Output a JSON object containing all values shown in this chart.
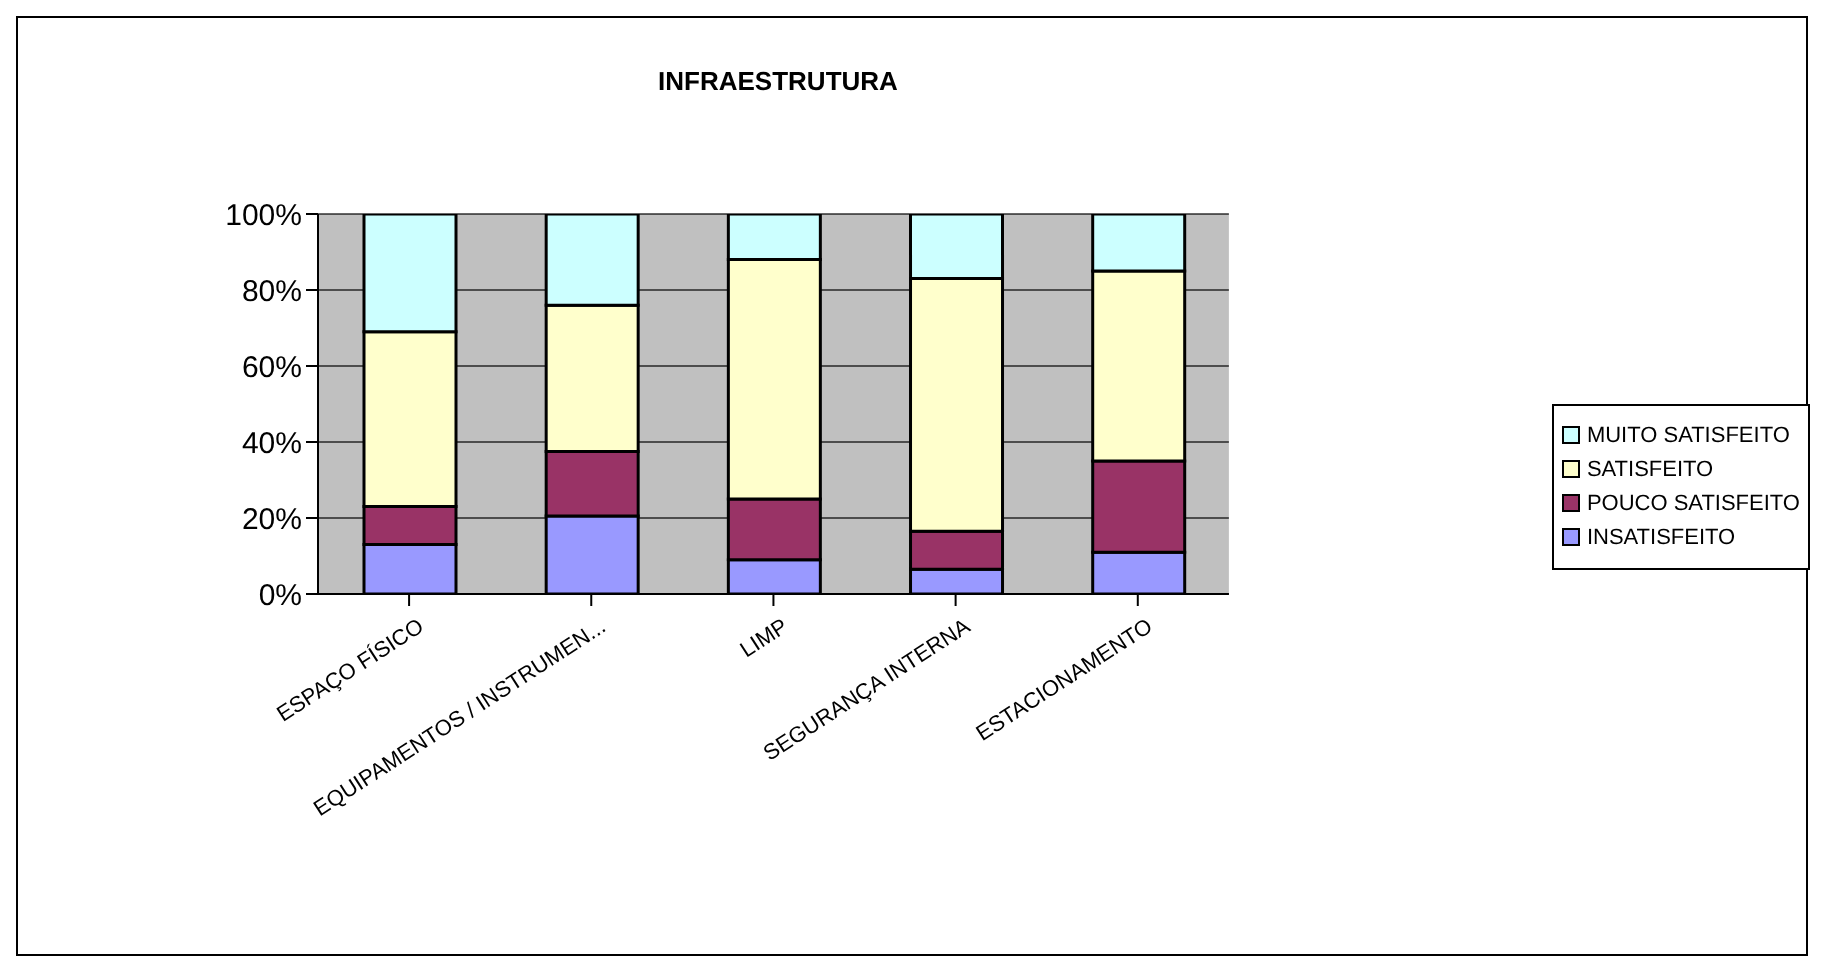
{
  "chart_data": {
    "type": "bar",
    "title": "INFRAESTRUTURA",
    "stacked": true,
    "categories": [
      "ESPAÇO FÍSICO",
      "EQUIPAMENTOS / INSTRUMEN...",
      "LIMP",
      "SEGURANÇA INTERNA",
      "ESTACIONAMENTO"
    ],
    "series": [
      {
        "name": "INSATISFEITO",
        "color": "#9999ff",
        "values": [
          13,
          20.5,
          9,
          6.5,
          11
        ]
      },
      {
        "name": "POUCO SATISFEITO",
        "color": "#993366",
        "values": [
          10,
          17,
          16,
          10,
          24
        ]
      },
      {
        "name": "SATISFEITO",
        "color": "#ffffcc",
        "values": [
          46,
          38.5,
          63,
          66.5,
          50
        ]
      },
      {
        "name": "MUITO SATISFEITO",
        "color": "#ccffff",
        "values": [
          31,
          24,
          12,
          17,
          15
        ]
      }
    ],
    "ylim": [
      0,
      100
    ],
    "yticks": [
      {
        "value": 0,
        "label": "0%"
      },
      {
        "value": 20,
        "label": "20%"
      },
      {
        "value": 40,
        "label": "40%"
      },
      {
        "value": 60,
        "label": "60%"
      },
      {
        "value": 80,
        "label": "80%"
      },
      {
        "value": 100,
        "label": "100%"
      }
    ],
    "grid": "y",
    "legend": "right"
  }
}
